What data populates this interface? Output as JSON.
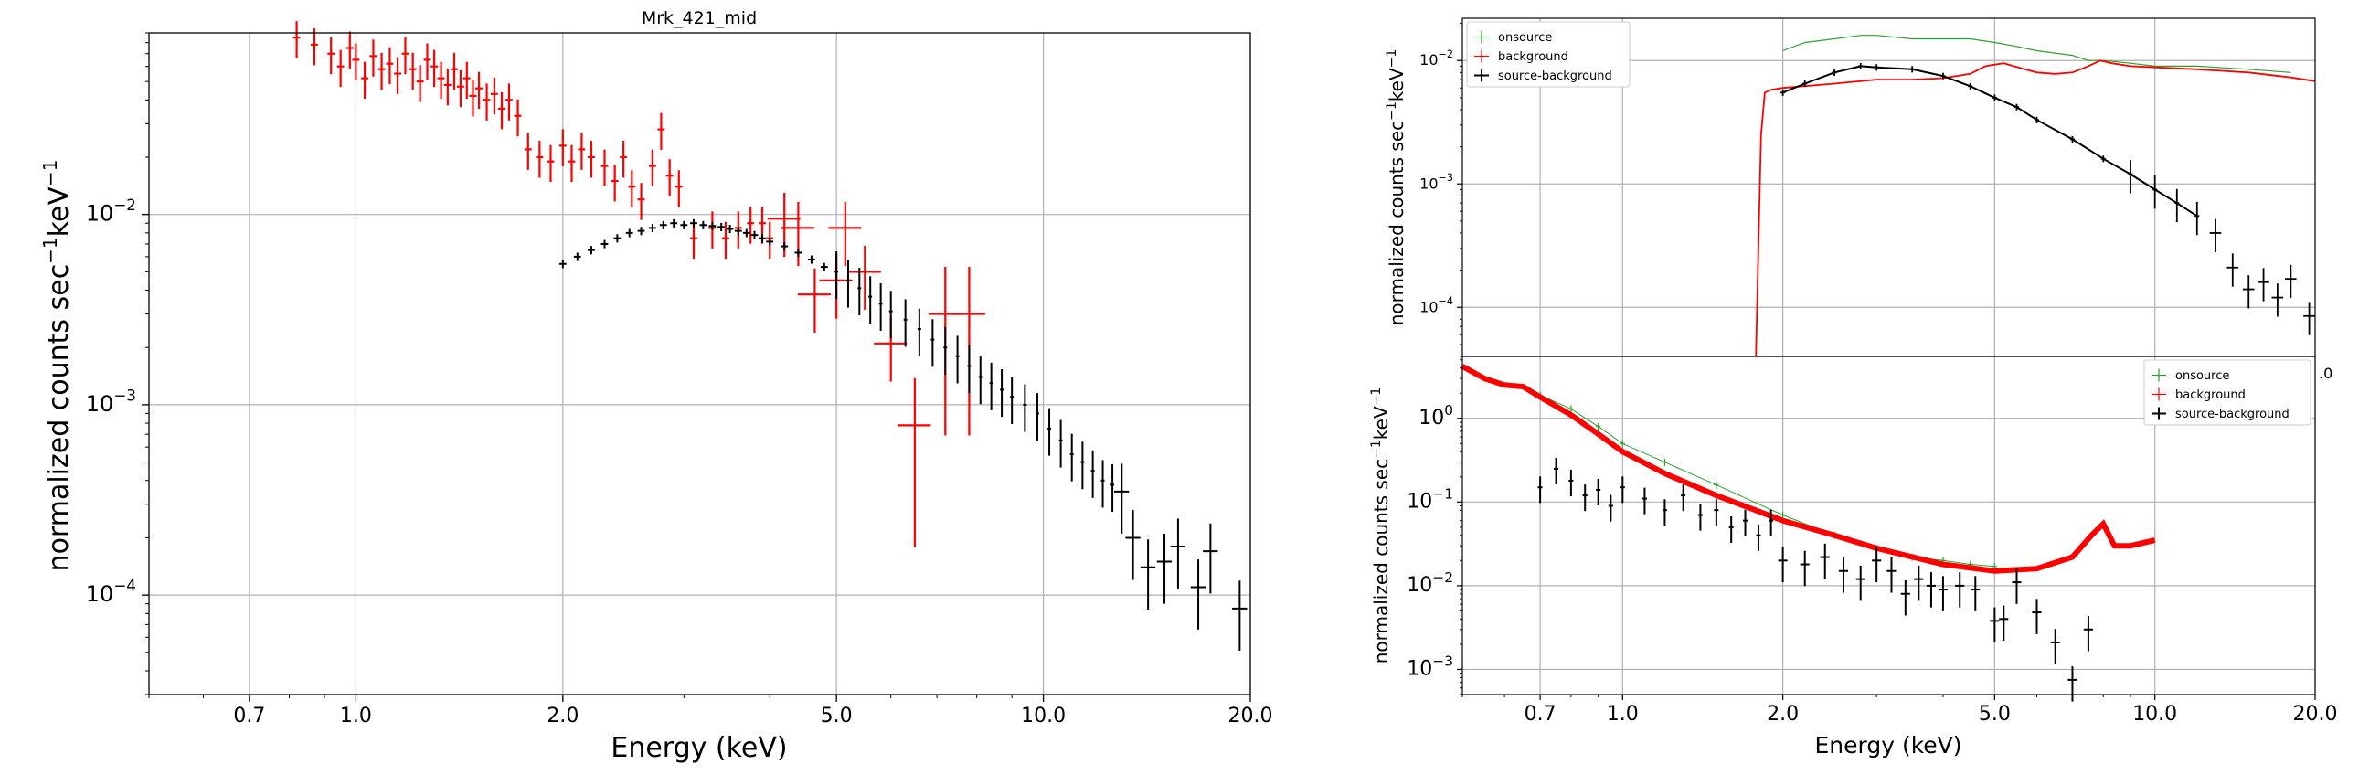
{
  "chart_data": [
    {
      "type": "scatter",
      "title": "Mrk_421_mid",
      "xlabel": "Energy (keV)",
      "ylabel": "normalized counts sec^-1 keV^-1",
      "xscale": "log",
      "yscale": "log",
      "xlim": [
        0.5,
        20.0
      ],
      "ylim": [
        3e-05,
        0.09
      ],
      "xticks": [
        "0.7",
        "1.0",
        "2.0",
        "5.0",
        "10.0",
        "20.0"
      ],
      "yticks": [
        "10^-2",
        "10^-3",
        "10^-4"
      ],
      "grid": true,
      "series": [
        {
          "color": "#ff0000",
          "style": "errorbar",
          "points": [
            [
              0.82,
              0.085
            ],
            [
              0.87,
              0.078
            ],
            [
              0.92,
              0.07
            ],
            [
              0.95,
              0.06
            ],
            [
              0.98,
              0.075
            ],
            [
              1.0,
              0.065
            ],
            [
              1.03,
              0.052
            ],
            [
              1.06,
              0.068
            ],
            [
              1.09,
              0.058
            ],
            [
              1.12,
              0.062
            ],
            [
              1.15,
              0.055
            ],
            [
              1.18,
              0.07
            ],
            [
              1.21,
              0.058
            ],
            [
              1.24,
              0.05
            ],
            [
              1.27,
              0.065
            ],
            [
              1.3,
              0.06
            ],
            [
              1.33,
              0.052
            ],
            [
              1.36,
              0.048
            ],
            [
              1.39,
              0.058
            ],
            [
              1.42,
              0.047
            ],
            [
              1.45,
              0.052
            ],
            [
              1.48,
              0.042
            ],
            [
              1.51,
              0.046
            ],
            [
              1.55,
              0.04
            ],
            [
              1.59,
              0.043
            ],
            [
              1.63,
              0.036
            ],
            [
              1.67,
              0.04
            ],
            [
              1.72,
              0.033
            ],
            [
              1.78,
              0.022
            ],
            [
              1.85,
              0.02
            ],
            [
              1.92,
              0.019
            ],
            [
              2.0,
              0.023
            ],
            [
              2.06,
              0.019
            ],
            [
              2.13,
              0.022
            ],
            [
              2.2,
              0.02
            ],
            [
              2.3,
              0.018
            ],
            [
              2.38,
              0.015
            ],
            [
              2.45,
              0.02
            ],
            [
              2.52,
              0.014
            ],
            [
              2.6,
              0.012
            ],
            [
              2.7,
              0.018
            ],
            [
              2.78,
              0.028
            ],
            [
              2.86,
              0.016
            ],
            [
              2.95,
              0.014
            ],
            [
              3.1,
              0.0075
            ],
            [
              3.3,
              0.0085
            ],
            [
              3.45,
              0.0075
            ],
            [
              3.6,
              0.0085
            ],
            [
              3.75,
              0.009
            ],
            [
              3.9,
              0.009
            ],
            [
              4.0,
              0.0075
            ],
            [
              4.2,
              0.0095
            ],
            [
              4.4,
              0.0085
            ],
            [
              4.65,
              0.0038
            ],
            [
              5.0,
              0.0045
            ],
            [
              5.15,
              0.0085
            ],
            [
              5.5,
              0.005
            ],
            [
              6.0,
              0.0021
            ],
            [
              6.5,
              0.00078
            ],
            [
              7.2,
              0.003
            ],
            [
              7.8,
              0.003
            ]
          ]
        },
        {
          "color": "#000000",
          "style": "errorbar",
          "points": [
            [
              2.0,
              0.0055
            ],
            [
              2.1,
              0.006
            ],
            [
              2.2,
              0.0065
            ],
            [
              2.3,
              0.007
            ],
            [
              2.4,
              0.0075
            ],
            [
              2.5,
              0.008
            ],
            [
              2.6,
              0.0082
            ],
            [
              2.7,
              0.0085
            ],
            [
              2.8,
              0.0088
            ],
            [
              2.9,
              0.009
            ],
            [
              3.0,
              0.0088
            ],
            [
              3.1,
              0.009
            ],
            [
              3.2,
              0.0088
            ],
            [
              3.3,
              0.0087
            ],
            [
              3.4,
              0.0086
            ],
            [
              3.5,
              0.0084
            ],
            [
              3.6,
              0.0082
            ],
            [
              3.7,
              0.008
            ],
            [
              3.8,
              0.0078
            ],
            [
              3.9,
              0.0075
            ],
            [
              4.0,
              0.0072
            ],
            [
              4.2,
              0.0068
            ],
            [
              4.4,
              0.0063
            ],
            [
              4.6,
              0.0058
            ],
            [
              4.8,
              0.0053
            ],
            [
              5.0,
              0.005
            ],
            [
              5.2,
              0.0045
            ],
            [
              5.4,
              0.0041
            ],
            [
              5.6,
              0.0037
            ],
            [
              5.8,
              0.0034
            ],
            [
              6.0,
              0.0031
            ],
            [
              6.3,
              0.0028
            ],
            [
              6.6,
              0.0025
            ],
            [
              6.9,
              0.0022
            ],
            [
              7.2,
              0.002
            ],
            [
              7.5,
              0.0018
            ],
            [
              7.8,
              0.0016
            ],
            [
              8.1,
              0.0014
            ],
            [
              8.4,
              0.0013
            ],
            [
              8.7,
              0.0012
            ],
            [
              9.0,
              0.0011
            ],
            [
              9.4,
              0.001
            ],
            [
              9.8,
              0.0009
            ],
            [
              10.2,
              0.00075
            ],
            [
              10.6,
              0.00065
            ],
            [
              11.0,
              0.00055
            ],
            [
              11.4,
              0.0005
            ],
            [
              11.8,
              0.00045
            ],
            [
              12.2,
              0.0004
            ],
            [
              12.6,
              0.00038
            ],
            [
              13.0,
              0.00035
            ],
            [
              13.5,
              0.0002
            ],
            [
              14.2,
              0.00014
            ],
            [
              15.0,
              0.00015
            ],
            [
              15.7,
              0.00018
            ],
            [
              16.8,
              0.00011
            ],
            [
              17.5,
              0.00017
            ],
            [
              19.3,
              8.5e-05
            ]
          ]
        }
      ]
    },
    {
      "type": "line",
      "xlabel": "",
      "ylabel": "normalized counts sec^-1 keV^-1",
      "xscale": "log",
      "yscale": "log",
      "xlim": [
        0.5,
        20.0
      ],
      "ylim": [
        4e-05,
        0.022
      ],
      "yticks": [
        "10^-2",
        "10^-3",
        "10^-4"
      ],
      "grid": true,
      "legend": {
        "position": "top-left",
        "entries": [
          "onsource",
          "background",
          "source-background"
        ]
      },
      "series": [
        {
          "name": "onsource",
          "color": "#2ca02c",
          "x": [
            2.0,
            2.2,
            2.5,
            2.8,
            3.0,
            3.5,
            4.0,
            4.5,
            5.0,
            5.5,
            6.0,
            7.0,
            7.5,
            8.0,
            9.0,
            10.0,
            12.0,
            15.0,
            18.0
          ],
          "values": [
            0.012,
            0.014,
            0.015,
            0.016,
            0.016,
            0.015,
            0.015,
            0.015,
            0.014,
            0.013,
            0.012,
            0.011,
            0.01,
            0.01,
            0.0095,
            0.009,
            0.009,
            0.0085,
            0.008
          ]
        },
        {
          "name": "background",
          "color": "#ff0000",
          "x": [
            1.78,
            1.82,
            1.85,
            1.9,
            2.0,
            2.5,
            3.0,
            3.5,
            4.0,
            4.5,
            4.8,
            5.2,
            5.7,
            6.0,
            6.5,
            7.0,
            7.5,
            7.9,
            8.3,
            9.0,
            10.0,
            12.0,
            15.0,
            18.0,
            20.0
          ],
          "values": [
            4e-05,
            0.0025,
            0.0055,
            0.0058,
            0.006,
            0.0065,
            0.007,
            0.007,
            0.0072,
            0.0078,
            0.009,
            0.0095,
            0.0085,
            0.008,
            0.0078,
            0.008,
            0.009,
            0.01,
            0.0095,
            0.009,
            0.0088,
            0.0085,
            0.008,
            0.0073,
            0.0068
          ]
        },
        {
          "name": "source-background",
          "color": "#000000",
          "x": [
            2.0,
            2.2,
            2.5,
            2.8,
            3.0,
            3.5,
            4.0,
            4.5,
            5.0,
            5.5,
            6.0,
            7.0,
            8.0,
            9.0,
            10.0,
            11.0,
            12.0,
            13.0,
            14.0,
            15.0,
            16.0,
            17.0,
            18.0,
            19.5
          ],
          "values": [
            0.0055,
            0.0065,
            0.008,
            0.009,
            0.0088,
            0.0085,
            0.0075,
            0.0062,
            0.005,
            0.0042,
            0.0033,
            0.0023,
            0.0016,
            0.0012,
            0.0009,
            0.0007,
            0.00055,
            0.0004,
            0.00021,
            0.00014,
            0.00016,
            0.00012,
            0.00017,
            8.5e-05
          ]
        }
      ]
    },
    {
      "type": "line",
      "xlabel": "Energy (keV)",
      "ylabel": "normalized counts sec^-1 keV^-1",
      "xscale": "log",
      "yscale": "log",
      "xlim": [
        0.5,
        20.0
      ],
      "ylim": [
        0.0005,
        5.5
      ],
      "xticks": [
        "0.7",
        "1.0",
        "2.0",
        "5.0",
        "10.0",
        "20.0"
      ],
      "yticks": [
        "10^0",
        "10^-1",
        "10^-2",
        "10^-3"
      ],
      "grid": true,
      "legend": {
        "position": "top-right",
        "entries": [
          "onsource",
          "background",
          "source-background"
        ]
      },
      "series": [
        {
          "name": "onsource",
          "color": "#2ca02c",
          "x": [
            0.7,
            0.8,
            0.9,
            1.0,
            1.2,
            1.5,
            2.0,
            2.5,
            3.0,
            3.5,
            4.0,
            4.5,
            5.0
          ],
          "values": [
            1.9,
            1.3,
            0.8,
            0.5,
            0.3,
            0.16,
            0.07,
            0.04,
            0.028,
            0.022,
            0.02,
            0.018,
            0.017
          ]
        },
        {
          "name": "background",
          "color": "#ff0000",
          "x": [
            0.5,
            0.55,
            0.6,
            0.65,
            0.7,
            0.8,
            0.9,
            1.0,
            1.2,
            1.5,
            2.0,
            2.5,
            3.0,
            4.0,
            5.0,
            6.0,
            7.0,
            7.6,
            8.0,
            8.4,
            9.0,
            10.0
          ],
          "values": [
            4.2,
            3.0,
            2.5,
            2.4,
            1.8,
            1.1,
            0.65,
            0.4,
            0.22,
            0.12,
            0.06,
            0.04,
            0.028,
            0.018,
            0.015,
            0.016,
            0.022,
            0.04,
            0.055,
            0.03,
            0.03,
            0.035
          ]
        },
        {
          "name": "source-background",
          "color": "#000000",
          "x": [
            0.7,
            0.75,
            0.8,
            0.85,
            0.9,
            0.95,
            1.0,
            1.1,
            1.2,
            1.3,
            1.4,
            1.5,
            1.6,
            1.7,
            1.8,
            1.9,
            2.0,
            2.2,
            2.4,
            2.6,
            2.8,
            3.0,
            3.2,
            3.4,
            3.6,
            3.8,
            4.0,
            4.3,
            4.6,
            5.0,
            5.2,
            5.5,
            6.0,
            6.5,
            7.0,
            7.5
          ],
          "values": [
            0.15,
            0.25,
            0.18,
            0.12,
            0.14,
            0.09,
            0.15,
            0.11,
            0.08,
            0.12,
            0.07,
            0.08,
            0.05,
            0.06,
            0.04,
            0.06,
            0.02,
            0.018,
            0.022,
            0.015,
            0.012,
            0.02,
            0.015,
            0.008,
            0.012,
            0.01,
            0.009,
            0.01,
            0.009,
            0.0038,
            0.004,
            0.011,
            0.0048,
            0.0021,
            0.00075,
            0.003
          ]
        }
      ]
    }
  ],
  "panels": {
    "left": {
      "title": "Mrk_421_mid",
      "xlabel": "Energy (keV)",
      "ylabel_main": "normalized counts sec",
      "ylabel_exp1": "−1",
      "ylabel_mid": "keV",
      "ylabel_exp2": "−1"
    },
    "right_top": {
      "ylabel_main": "normalized counts sec",
      "ylabel_exp1": "−1",
      "ylabel_mid": "keV",
      "ylabel_exp2": "−1",
      "overflow_tick": ".0"
    },
    "right_bottom": {
      "xlabel": "Energy (keV)",
      "ylabel_main": "normalized counts sec",
      "ylabel_exp1": "−1",
      "ylabel_mid": "keV",
      "ylabel_exp2": "−1"
    }
  }
}
